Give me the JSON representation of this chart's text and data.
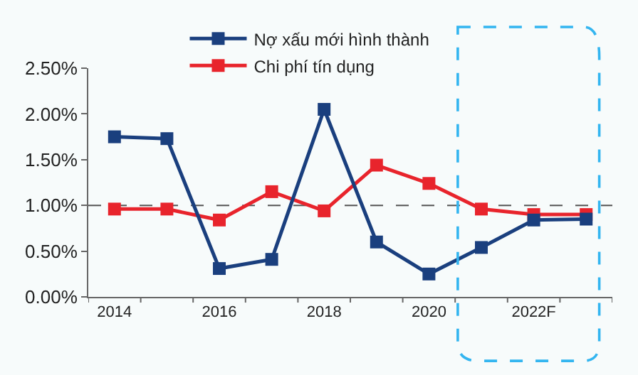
{
  "chart_data": {
    "type": "line",
    "categories": [
      "2014",
      null,
      "2016",
      null,
      "2018",
      null,
      "2020",
      null,
      "2022F",
      null
    ],
    "series": [
      {
        "name": "Nợ xấu mới hình thành",
        "color": "#1a3f7e",
        "values": [
          1.75,
          1.73,
          0.31,
          0.41,
          2.05,
          0.6,
          0.25,
          0.54,
          0.84,
          0.85
        ]
      },
      {
        "name": "Chi phí tín dụng",
        "color": "#e8242c",
        "values": [
          0.96,
          0.96,
          0.84,
          1.15,
          0.94,
          1.44,
          1.24,
          0.96,
          0.9,
          0.9
        ]
      }
    ],
    "ylim": [
      0,
      2.5
    ],
    "yticks": [
      {
        "value": 0,
        "label": "0.00%"
      },
      {
        "value": 0.5,
        "label": "0.50%"
      },
      {
        "value": 1,
        "label": "1.00%"
      },
      {
        "value": 1.5,
        "label": "1.50%"
      },
      {
        "value": 2,
        "label": "2.00%"
      },
      {
        "value": 2.5,
        "label": "2.50%"
      }
    ],
    "ref_lines": [
      {
        "axis": "y",
        "value": 1,
        "color": "#555555",
        "line_style": "dashed"
      }
    ],
    "marker": "square",
    "line_style": "solid",
    "grid": false,
    "legend": "top"
  }
}
